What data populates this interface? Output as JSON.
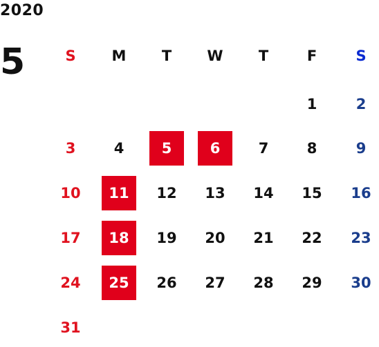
{
  "calendar": {
    "year": "2020",
    "month": "5",
    "weekdays": [
      "S",
      "M",
      "T",
      "W",
      "T",
      "F",
      "S"
    ],
    "weeks": [
      [
        "",
        "",
        "",
        "",
        "",
        "1",
        "2"
      ],
      [
        "3",
        "4",
        "5",
        "6",
        "7",
        "8",
        "9"
      ],
      [
        "10",
        "11",
        "12",
        "13",
        "14",
        "15",
        "16"
      ],
      [
        "17",
        "18",
        "19",
        "20",
        "21",
        "22",
        "23"
      ],
      [
        "24",
        "25",
        "26",
        "27",
        "28",
        "29",
        "30"
      ],
      [
        "31",
        "",
        "",
        "",
        "",
        "",
        ""
      ]
    ],
    "holidays": [
      "5",
      "6",
      "11",
      "18",
      "25"
    ]
  },
  "colors": {
    "sunday": "#e0121f",
    "saturday": "#1a3d8c",
    "holiday_bg": "#e0001b",
    "text": "#111111"
  }
}
